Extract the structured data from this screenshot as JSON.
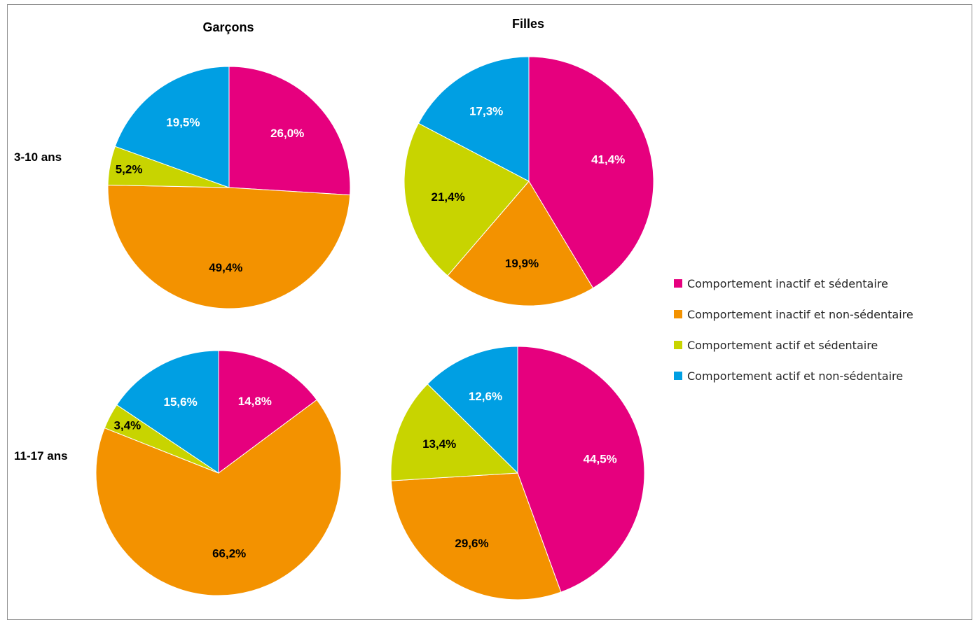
{
  "chart_data": {
    "type": "pie",
    "columns": [
      "Garçons",
      "Filles"
    ],
    "rows": [
      "3-10 ans",
      "11-17 ans"
    ],
    "categories": [
      "Comportement inactif et sédentaire",
      "Comportement inactif et non-sédentaire",
      "Comportement actif et sédentaire",
      "Comportement actif et non-sédentaire"
    ],
    "colors": [
      "#e6007e",
      "#f39200",
      "#c8d400",
      "#009fe3"
    ],
    "label_colors": [
      "#ffffff",
      "#000000",
      "#000000",
      "#ffffff"
    ],
    "legend_position": "right",
    "pies": [
      {
        "column": "Garçons",
        "row": "3-10 ans",
        "values": [
          26.0,
          49.4,
          5.2,
          19.5
        ],
        "labels": [
          "26,0%",
          "49,4%",
          "5,2%",
          "19,5%"
        ]
      },
      {
        "column": "Filles",
        "row": "3-10 ans",
        "values": [
          41.4,
          19.9,
          21.4,
          17.3
        ],
        "labels": [
          "41,4%",
          "19,9%",
          "21,4%",
          "17,3%"
        ]
      },
      {
        "column": "Garçons",
        "row": "11-17 ans",
        "values": [
          14.8,
          66.2,
          3.4,
          15.6
        ],
        "labels": [
          "14,8%",
          "66,2%",
          "3,4%",
          "15,6%"
        ]
      },
      {
        "column": "Filles",
        "row": "11-17 ans",
        "values": [
          44.5,
          29.6,
          13.4,
          12.6
        ],
        "labels": [
          "44,5%",
          "29,6%",
          "13,4%",
          "12,6%"
        ]
      }
    ]
  }
}
